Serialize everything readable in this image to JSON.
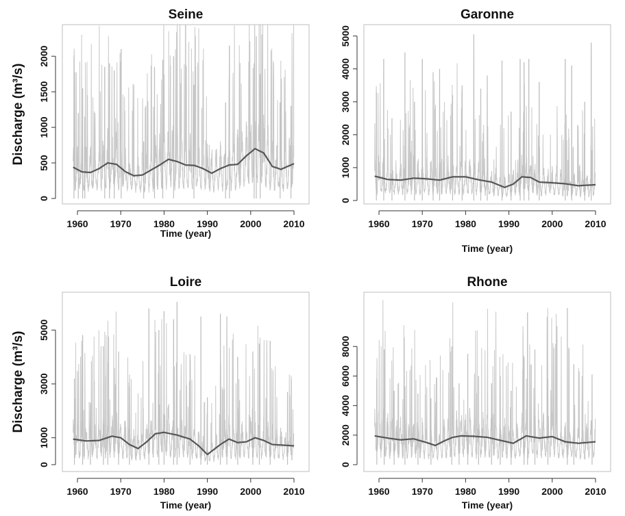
{
  "chart_data": [
    {
      "type": "line",
      "title": "Seine",
      "xlabel": "Time (year)",
      "ylabel": "Discharge (m³/s)",
      "xlim": [
        1959,
        2010
      ],
      "ylim": [
        0,
        2300
      ],
      "xticks": [
        "1960",
        "1970",
        "1980",
        "1990",
        "2000",
        "2010"
      ],
      "yticks": [
        "0",
        "500",
        "1000",
        "1500",
        "2000"
      ],
      "series": [
        {
          "color": "#c8c8c8",
          "style": "raw",
          "x": [
            1959.2,
            1960.2,
            1961.2,
            1961.7,
            1966.3,
            1967.4,
            1968.5,
            1970.1,
            1975.3,
            1977.8,
            1979.7,
            1982.2,
            1986.9,
            1994.2,
            1995.1,
            2000.8,
            2001.3,
            2002.2,
            2006.8,
            2009.3
          ],
          "y": [
            2010,
            1200,
            1550,
            1150,
            1850,
            1900,
            1800,
            2100,
            800,
            1850,
            1950,
            2000,
            1600,
            1350,
            2150,
            1900,
            2280,
            1750,
            1350,
            1300
          ]
        },
        {
          "color": "#555555",
          "style": "smooth",
          "x": [
            1959,
            1961,
            1963,
            1965,
            1967,
            1969,
            1971,
            1973,
            1975,
            1977,
            1979,
            1981,
            1983,
            1985,
            1987,
            1989,
            1991,
            1993,
            1995,
            1997,
            1999,
            2001,
            2003,
            2005,
            2007,
            2010
          ],
          "y": [
            440,
            375,
            365,
            420,
            500,
            480,
            380,
            320,
            330,
            400,
            470,
            550,
            520,
            470,
            465,
            420,
            355,
            420,
            470,
            480,
            600,
            700,
            640,
            450,
            410,
            490
          ]
        }
      ]
    },
    {
      "type": "line",
      "title": "Garonne",
      "xlabel": "Time (year)",
      "ylabel": "",
      "xlim": [
        1959,
        2010
      ],
      "ylim": [
        0,
        5200
      ],
      "xticks": [
        "1960",
        "1970",
        "1980",
        "1990",
        "2000",
        "2010"
      ],
      "yticks": [
        "0",
        "1000",
        "2000",
        "3000",
        "4000",
        "5000"
      ],
      "series": [
        {
          "color": "#c8c8c8",
          "style": "raw",
          "x": [
            1959.4,
            1961.1,
            1963.0,
            1966.0,
            1968.2,
            1970.0,
            1972.5,
            1974.0,
            1977.0,
            1979.2,
            1981.9,
            1983.5,
            1985.0,
            1988.4,
            1990.5,
            1992.6,
            1993.5,
            1994.6,
            1997.0,
            2003.0,
            2004.5,
            2007.5,
            2009.0
          ],
          "y": [
            3300,
            4300,
            2500,
            4500,
            3000,
            4300,
            3900,
            4000,
            3200,
            3500,
            5050,
            3400,
            3800,
            4250,
            2700,
            4300,
            4200,
            4300,
            3600,
            4300,
            4100,
            3000,
            4800
          ]
        },
        {
          "color": "#555555",
          "style": "smooth",
          "x": [
            1959,
            1962,
            1965,
            1968,
            1971,
            1974,
            1977,
            1980,
            1983,
            1986,
            1989,
            1991,
            1993,
            1995,
            1997,
            2000,
            2003,
            2006,
            2010
          ],
          "y": [
            740,
            640,
            620,
            680,
            660,
            620,
            720,
            720,
            630,
            560,
            400,
            500,
            720,
            700,
            560,
            540,
            510,
            450,
            480
          ]
        }
      ]
    },
    {
      "type": "line",
      "title": "Loire",
      "xlabel": "Time (year)",
      "ylabel": "Discharge (m³/s)",
      "xlim": [
        1959,
        2010
      ],
      "ylim": [
        0,
        6100
      ],
      "xticks": [
        "1960",
        "1970",
        "1980",
        "1990",
        "2000",
        "2010"
      ],
      "yticks": [
        "0",
        "1000",
        "3000",
        "5000"
      ],
      "series": [
        {
          "color": "#c8c8c8",
          "style": "raw",
          "x": [
            1959.3,
            1961.2,
            1963.0,
            1966.0,
            1967.0,
            1969.5,
            1972.0,
            1976.5,
            1978.8,
            1980.0,
            1982.2,
            1983.0,
            1986.0,
            1988.5,
            1990.0,
            1993.0,
            1994.5,
            1997.0,
            2000.5,
            2002.0,
            2004.5,
            2008.5
          ],
          "y": [
            3200,
            4800,
            2300,
            4400,
            3800,
            4200,
            2900,
            5800,
            5000,
            5700,
            5400,
            6050,
            4100,
            5500,
            2500,
            5600,
            5500,
            4000,
            4200,
            4500,
            4600,
            2700
          ]
        },
        {
          "color": "#555555",
          "style": "smooth",
          "x": [
            1959,
            1962,
            1965,
            1968,
            1970,
            1972,
            1974,
            1976,
            1978,
            1980,
            1983,
            1986,
            1988,
            1990,
            1991,
            1993,
            1995,
            1997,
            1999,
            2001,
            2003,
            2005,
            2008,
            2010
          ],
          "y": [
            950,
            880,
            900,
            1060,
            1000,
            750,
            600,
            850,
            1150,
            1200,
            1100,
            950,
            700,
            380,
            500,
            750,
            950,
            820,
            850,
            1000,
            900,
            750,
            720,
            700
          ]
        }
      ]
    },
    {
      "type": "line",
      "title": "Rhone",
      "xlabel": "Time (year)",
      "ylabel": "",
      "xlim": [
        1959,
        2010
      ],
      "ylim": [
        0,
        10700
      ],
      "xticks": [
        "1960",
        "1970",
        "1980",
        "1990",
        "2000",
        "2010"
      ],
      "yticks": [
        "0",
        "2000",
        "4000",
        "6000",
        "8000"
      ],
      "series": [
        {
          "color": "#c8c8c8",
          "style": "raw",
          "x": [
            1959.5,
            1961.2,
            1963.5,
            1966.0,
            1969.0,
            1972.0,
            1976.8,
            1978.5,
            1980.5,
            1983.0,
            1986.0,
            1988.0,
            1990.5,
            1993.5,
            1994.3,
            1996.0,
            1999.0,
            2003.5,
            2005.0,
            2009.2
          ],
          "y": [
            5800,
            7800,
            5000,
            5300,
            4800,
            4500,
            8000,
            5500,
            7500,
            6000,
            5500,
            6000,
            5000,
            7200,
            10300,
            7800,
            5800,
            10600,
            6800,
            6100
          ]
        },
        {
          "color": "#555555",
          "style": "smooth",
          "x": [
            1959,
            1962,
            1965,
            1968,
            1971,
            1973,
            1975,
            1977,
            1979,
            1982,
            1985,
            1988,
            1991,
            1994,
            1997,
            2000,
            2003,
            2006,
            2010
          ],
          "y": [
            1950,
            1800,
            1680,
            1750,
            1500,
            1300,
            1600,
            1850,
            1950,
            1920,
            1850,
            1650,
            1450,
            1950,
            1800,
            1900,
            1550,
            1450,
            1550
          ]
        }
      ]
    }
  ]
}
